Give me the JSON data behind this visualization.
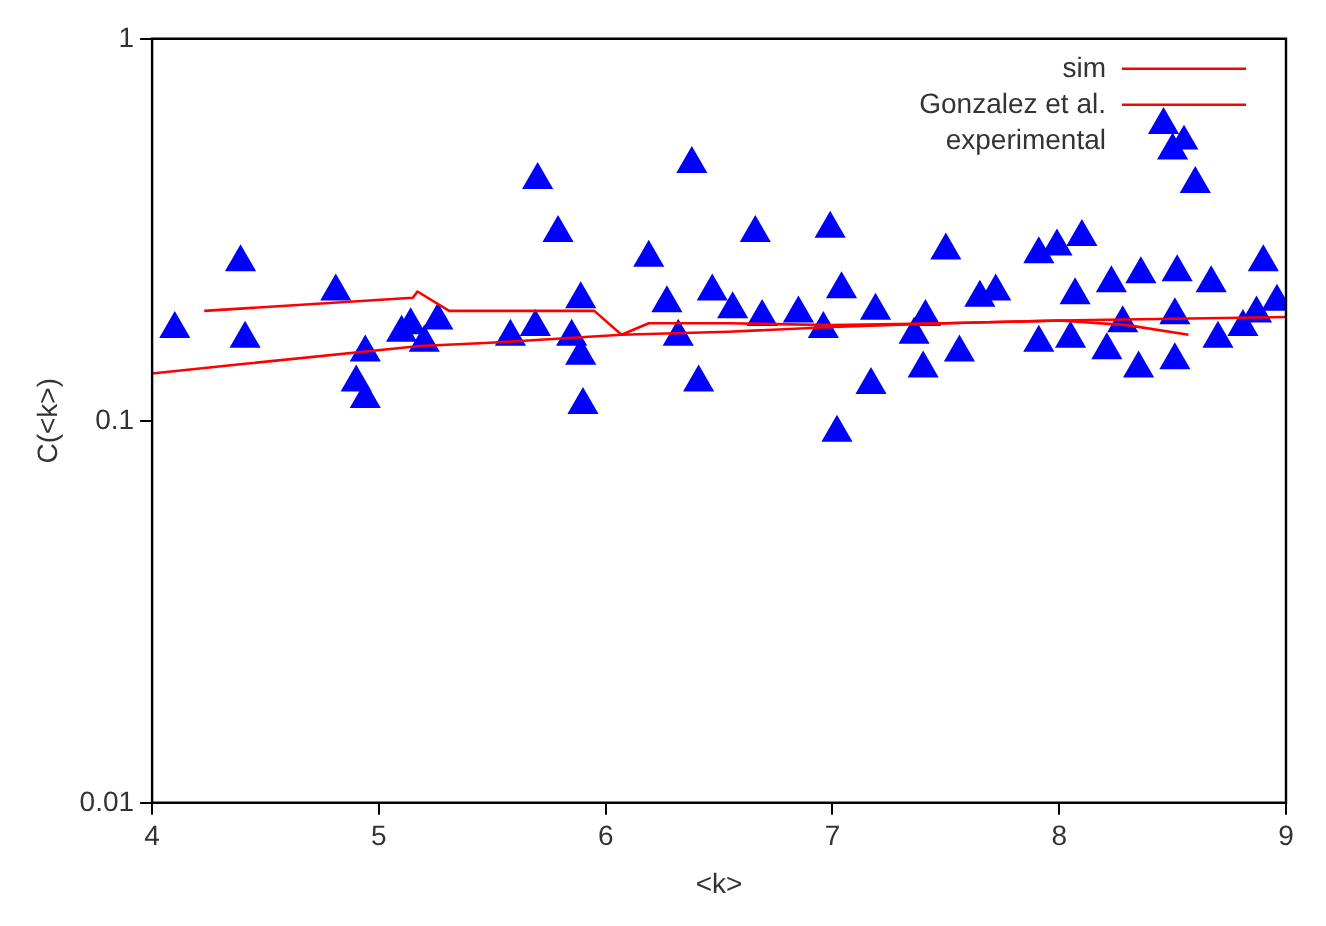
{
  "chart_data": {
    "type": "scatter",
    "xlabel": "<k>",
    "ylabel": "C(<k>)",
    "log": "y",
    "xlim": [
      4,
      9
    ],
    "xticks": [
      4,
      5,
      6,
      7,
      8,
      9
    ],
    "ylim": [
      0.01,
      1
    ],
    "yticks": [
      0.01,
      0.1,
      1
    ],
    "grid": false,
    "legend": "top right",
    "series": [
      {
        "name": "sim",
        "type": "line",
        "color": "#ff0000",
        "marker": "none",
        "x": [
          4.23,
          5.15,
          5.17,
          5.31,
          5.95,
          6.07,
          6.19,
          6.54,
          7.0,
          7.5,
          8.0,
          8.3,
          8.57
        ],
        "values": [
          0.194,
          0.21,
          0.218,
          0.194,
          0.194,
          0.168,
          0.18,
          0.18,
          0.178,
          0.18,
          0.183,
          0.178,
          0.168
        ]
      },
      {
        "name": "Gonzalez et al.",
        "type": "line",
        "color": "#ff0000",
        "marker": "none",
        "x": [
          4.0,
          4.41,
          5.18,
          5.49,
          6.07,
          6.54,
          7.0,
          7.5,
          8.0,
          9.0
        ],
        "values": [
          0.133,
          0.141,
          0.157,
          0.16,
          0.168,
          0.171,
          0.176,
          0.18,
          0.183,
          0.187
        ]
      },
      {
        "name": "experimental",
        "type": "scatter",
        "color": "#0000ff",
        "marker": "triangle",
        "x": [
          4.1,
          4.39,
          4.41,
          4.81,
          4.94,
          4.9,
          4.94,
          5.14,
          5.26,
          5.1,
          5.2,
          5.58,
          5.69,
          5.7,
          5.79,
          5.89,
          5.85,
          5.89,
          5.9,
          6.19,
          6.27,
          6.38,
          6.32,
          6.41,
          6.47,
          6.56,
          6.66,
          6.69,
          6.85,
          6.96,
          6.99,
          7.04,
          7.02,
          7.17,
          7.19,
          7.36,
          7.41,
          7.4,
          7.5,
          7.56,
          7.65,
          7.72,
          7.91,
          7.99,
          8.1,
          8.07,
          7.91,
          8.05,
          8.21,
          8.23,
          8.28,
          8.36,
          8.35,
          8.51,
          8.52,
          8.51,
          8.46,
          8.5,
          8.6,
          8.67,
          8.7,
          8.81,
          8.87,
          8.9,
          8.96
        ],
        "values": [
          0.174,
          0.26,
          0.164,
          0.218,
          0.151,
          0.126,
          0.114,
          0.178,
          0.183,
          0.17,
          0.16,
          0.166,
          0.176,
          0.427,
          0.31,
          0.208,
          0.166,
          0.148,
          0.11,
          0.267,
          0.203,
          0.47,
          0.166,
          0.126,
          0.218,
          0.196,
          0.31,
          0.187,
          0.191,
          0.174,
          0.318,
          0.221,
          0.093,
          0.124,
          0.194,
          0.168,
          0.187,
          0.137,
          0.279,
          0.151,
          0.21,
          0.218,
          0.273,
          0.286,
          0.303,
          0.213,
          0.16,
          0.164,
          0.153,
          0.229,
          0.18,
          0.242,
          0.137,
          0.189,
          0.245,
          0.144,
          0.595,
          0.51,
          0.417,
          0.229,
          0.164,
          0.176,
          0.191,
          0.26,
          0.205
        ]
      }
    ]
  }
}
